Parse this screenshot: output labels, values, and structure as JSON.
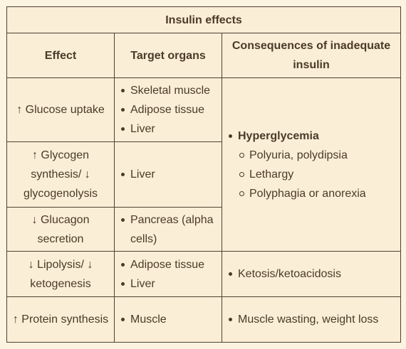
{
  "table": {
    "title": "Insulin effects",
    "headers": {
      "effect": "Effect",
      "target": "Target organs",
      "consequences": "Consequences of inadequate insulin"
    },
    "rows": [
      {
        "effect": "↑ Glucose uptake",
        "targets": [
          "Skeletal muscle",
          "Adipose tissue",
          "Liver"
        ]
      },
      {
        "effect": "↑ Glycogen synthesis/ ↓ glycogenolysis",
        "targets": [
          "Liver"
        ]
      },
      {
        "effect": "↓ Glucagon secretion",
        "targets": [
          "Pancreas (alpha cells)"
        ]
      },
      {
        "effect": "↓ Lipolysis/ ↓ ketogenesis",
        "targets": [
          "Adipose tissue",
          "Liver"
        ],
        "consequence": "Ketosis/ketoacidosis"
      },
      {
        "effect": "↑ Protein synthesis",
        "targets": [
          "Muscle"
        ],
        "consequence": "Muscle wasting, weight loss"
      }
    ],
    "hyperglycemia": {
      "label": "Hyperglycemia",
      "items": [
        "Polyuria, polydipsia",
        "Lethargy",
        "Polyphagia or anorexia"
      ]
    }
  }
}
